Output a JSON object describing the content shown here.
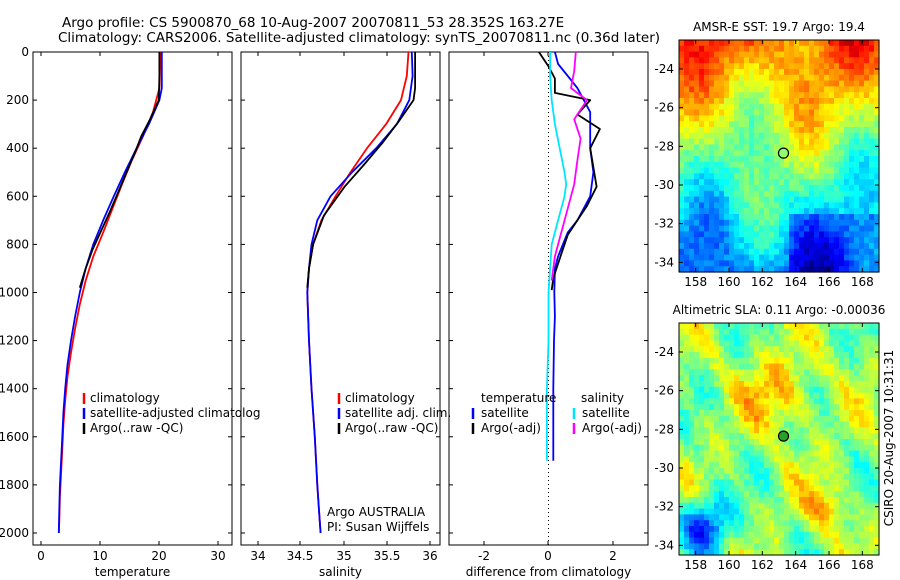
{
  "header": {
    "line1": "Argo profile: CS 5900870_68 10-Aug-2007 20070811_53 28.352S 163.27E",
    "line2": "Climatology: CARS2006. Satellite-adjusted climatology: synTS_20070811.nc (0.36d later)"
  },
  "colors": {
    "climatology": "#ff0000",
    "satellite": "#0000ff",
    "argo": "#000000",
    "salinity_satellite": "#00e5ff",
    "salinity_argo": "#ff00ff",
    "sst_map_palette": "jet (orange-yellow north, green-cyan mid, blue south)",
    "sla_map_palette": "jet (mostly green with yellow and cyan-blue patches)"
  },
  "chart_data": [
    {
      "type": "line",
      "name_key": "temperature",
      "xlabel": "temperature",
      "ylabel": "",
      "xlim": [
        -2,
        32
      ],
      "ylim": [
        2050,
        0
      ],
      "y_reversed": true,
      "xticks": [
        "0",
        "10",
        "20",
        "30"
      ],
      "yticks": [
        "0",
        "200",
        "400",
        "600",
        "800",
        "1000",
        "1200",
        "1400",
        "1600",
        "1800",
        "2000"
      ],
      "legend": [
        "climatology",
        "satellite-adjusted climatolog",
        "Argo(..raw -QC)"
      ],
      "legend_placement": "lower-right",
      "series": [
        {
          "name": "climatology",
          "color": "#ff0000",
          "x": [
            19.8,
            19.6,
            18.5,
            16.8,
            14.9,
            13.2,
            11.6,
            10.0,
            8.3,
            7.0,
            6.0,
            5.2,
            4.5,
            3.9,
            3.5,
            3.2,
            3.0,
            2.8,
            2.6,
            2.5,
            2.4
          ],
          "y": [
            0,
            150,
            250,
            350,
            450,
            550,
            650,
            750,
            850,
            950,
            1050,
            1150,
            1250,
            1350,
            1450,
            1550,
            1650,
            1750,
            1850,
            1950,
            2000
          ]
        },
        {
          "name": "satellite-adjusted climatolog",
          "color": "#0000ff",
          "x": [
            20.0,
            20.0,
            19.6,
            17.8,
            15.7,
            13.7,
            11.8,
            10.0,
            8.3,
            7.0,
            6.0,
            5.2,
            4.5,
            3.9,
            3.5,
            3.2,
            3.0,
            2.8,
            2.6,
            2.5,
            2.4
          ],
          "y": [
            0,
            150,
            200,
            300,
            400,
            500,
            600,
            700,
            800,
            900,
            1000,
            1100,
            1200,
            1300,
            1400,
            1500,
            1600,
            1700,
            1800,
            1900,
            2000
          ]
        },
        {
          "name": "Argo(..raw -QC)",
          "color": "#000000",
          "x": [
            19.6,
            19.6,
            19.5,
            18.0,
            16.5,
            15.4,
            14.0,
            12.6,
            11.2,
            9.7,
            8.2,
            7.0,
            6.0
          ],
          "y": [
            0,
            100,
            200,
            280,
            350,
            420,
            500,
            580,
            660,
            740,
            820,
            900,
            980
          ]
        }
      ]
    },
    {
      "type": "line",
      "name_key": "salinity",
      "xlabel": "salinity",
      "ylabel": "",
      "xlim": [
        33.7,
        36.1
      ],
      "ylim": [
        2050,
        0
      ],
      "y_reversed": true,
      "xticks": [
        "34",
        "34.5",
        "35",
        "35.5",
        "36"
      ],
      "legend": [
        "climatology",
        "satellite adj. clim.",
        "Argo(..raw -QC)"
      ],
      "legend_placement": "lower-right",
      "annotation": [
        "Argo AUSTRALIA",
        "PI: Susan Wijffels"
      ],
      "series": [
        {
          "name": "climatology",
          "color": "#ff0000",
          "x": [
            35.72,
            35.7,
            35.63,
            35.45,
            35.22,
            35.02,
            34.84,
            34.67,
            34.57,
            34.52,
            34.5,
            34.52,
            34.55,
            34.59,
            34.62,
            34.64,
            34.66
          ],
          "y": [
            0,
            100,
            200,
            300,
            400,
            500,
            600,
            700,
            800,
            900,
            1000,
            1200,
            1400,
            1600,
            1800,
            1900,
            2000
          ]
        },
        {
          "name": "satellite adj. clim.",
          "color": "#0000ff",
          "x": [
            35.76,
            35.77,
            35.73,
            35.58,
            35.33,
            35.04,
            34.78,
            34.62,
            34.55,
            34.52,
            34.5,
            34.52,
            34.55,
            34.59,
            34.62,
            34.64,
            34.66
          ],
          "y": [
            0,
            100,
            200,
            300,
            400,
            500,
            600,
            700,
            800,
            900,
            1000,
            1200,
            1400,
            1600,
            1800,
            1900,
            2000
          ]
        },
        {
          "name": "Argo(..raw -QC)",
          "color": "#000000",
          "x": [
            35.8,
            35.8,
            35.78,
            35.6,
            35.4,
            35.18,
            34.95,
            34.7,
            34.57,
            34.52,
            34.5
          ],
          "y": [
            0,
            150,
            200,
            290,
            380,
            470,
            560,
            680,
            800,
            900,
            980
          ]
        }
      ]
    },
    {
      "type": "line",
      "name_key": "difference",
      "xlabel": "difference from climatology",
      "ylabel": "",
      "xlim": [
        -3.1,
        3.1
      ],
      "ylim": [
        2050,
        0
      ],
      "y_reversed": true,
      "xticks": [
        "-2",
        "0",
        "2"
      ],
      "legend_titles": [
        "temperature",
        "salinity"
      ],
      "legend": [
        "satellite",
        "Argo(-adj)",
        "satellite",
        "Argo(-adj)"
      ],
      "legend_placement": "lower-center",
      "zero_line": "dotted",
      "series": [
        {
          "name": "temperature satellite",
          "color": "#0000ff",
          "x": [
            0.2,
            0.3,
            0.6,
            0.9,
            1.1,
            1.3,
            1.3,
            1.3,
            1.4,
            1.3,
            1.1,
            0.9,
            0.6,
            0.45,
            0.3,
            0.2,
            0.18,
            0.2,
            0.17,
            0.15,
            0.15,
            0.15
          ],
          "y": [
            0,
            50,
            100,
            150,
            200,
            250,
            300,
            400,
            500,
            600,
            650,
            700,
            750,
            800,
            850,
            900,
            1000,
            1100,
            1200,
            1400,
            1600,
            1700
          ]
        },
        {
          "name": "temperature Argo(-adj)",
          "color": "#000000",
          "x": [
            -0.3,
            0.0,
            0.2,
            0.2,
            1.3,
            0.9,
            1.6,
            1.3,
            1.4,
            1.5,
            1.2,
            0.9,
            0.6,
            0.45,
            0.3,
            0.15,
            0.1
          ],
          "y": [
            0,
            60,
            110,
            170,
            200,
            260,
            320,
            400,
            480,
            560,
            640,
            700,
            760,
            820,
            880,
            940,
            990
          ]
        },
        {
          "name": "salinity satellite",
          "color": "#00e5ff",
          "x": [
            0.05,
            0.05,
            0.1,
            0.2,
            0.35,
            0.5,
            0.55,
            0.5,
            0.4,
            0.3,
            0.1,
            0.05,
            0.0,
            0.0,
            -0.05,
            -0.05,
            -0.05
          ],
          "y": [
            0,
            100,
            200,
            300,
            400,
            500,
            550,
            600,
            650,
            700,
            800,
            900,
            1000,
            1200,
            1400,
            1600,
            1700
          ]
        },
        {
          "name": "salinity Argo(-adj)",
          "color": "#ff00ff",
          "x": [
            0.85,
            0.8,
            0.7,
            1.2,
            0.8,
            1.0,
            0.9,
            0.8,
            0.6,
            0.4,
            0.2,
            0.1
          ],
          "y": [
            0,
            80,
            150,
            200,
            280,
            360,
            450,
            550,
            650,
            750,
            850,
            950
          ]
        }
      ]
    },
    {
      "type": "heatmap",
      "name_key": "sst_map",
      "title": "AMSR-E SST: 19.7 Argo: 19.4",
      "xlim": [
        157,
        169
      ],
      "ylim": [
        -34.5,
        -22.5
      ],
      "xticks": [
        "158",
        "160",
        "162",
        "164",
        "166",
        "168"
      ],
      "yticks": [
        "-24",
        "-26",
        "-28",
        "-30",
        "-32",
        "-34"
      ],
      "marker": {
        "lon": 163.27,
        "lat": -28.352,
        "style": "open circle"
      }
    },
    {
      "type": "heatmap",
      "name_key": "sla_map",
      "title": "Altimetric SLA: 0.11 Argo: -0.00036",
      "xlim": [
        157,
        169
      ],
      "ylim": [
        -34.5,
        -22.5
      ],
      "xticks": [
        "158",
        "160",
        "162",
        "164",
        "166",
        "168"
      ],
      "yticks": [
        "-24",
        "-26",
        "-28",
        "-30",
        "-32",
        "-34"
      ],
      "marker": {
        "lon": 163.27,
        "lat": -28.352,
        "style": "filled circle"
      }
    }
  ],
  "footer_vertical": "CSIRO 20-Aug-2007 10:31:31"
}
